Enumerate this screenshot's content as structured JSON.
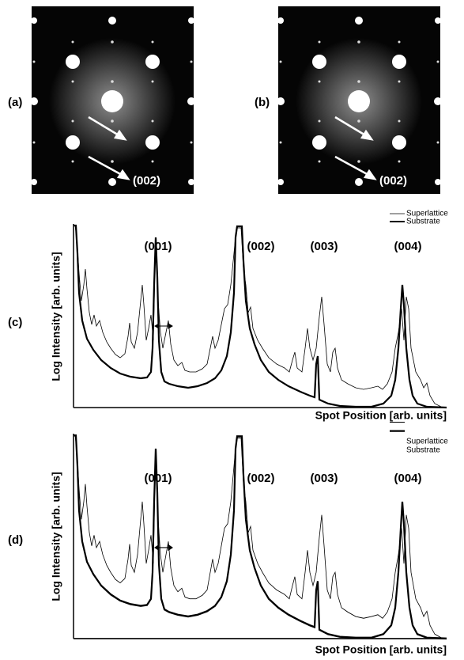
{
  "panels": {
    "a": {
      "label": "(a)",
      "spot_label": "(002)"
    },
    "b": {
      "label": "(b)",
      "spot_label": "(002)"
    },
    "c": {
      "label": "(c)",
      "legend": [
        "Superlattice",
        "Substrate"
      ],
      "peaks": [
        "(001)",
        "(002)",
        "(003)",
        "(004)"
      ],
      "y_label": "Log Intensity [arb. units]",
      "x_label": "Spot Position [arb. units]"
    },
    "d": {
      "label": "(d)",
      "legend": [
        "Superlattice",
        "Substrate"
      ],
      "peaks": [
        "(001)",
        "(002)",
        "(003)",
        "(004)"
      ],
      "y_label": "Log Intensity [arb. units]",
      "x_label": "Spot Position [arb. units]"
    }
  }
}
